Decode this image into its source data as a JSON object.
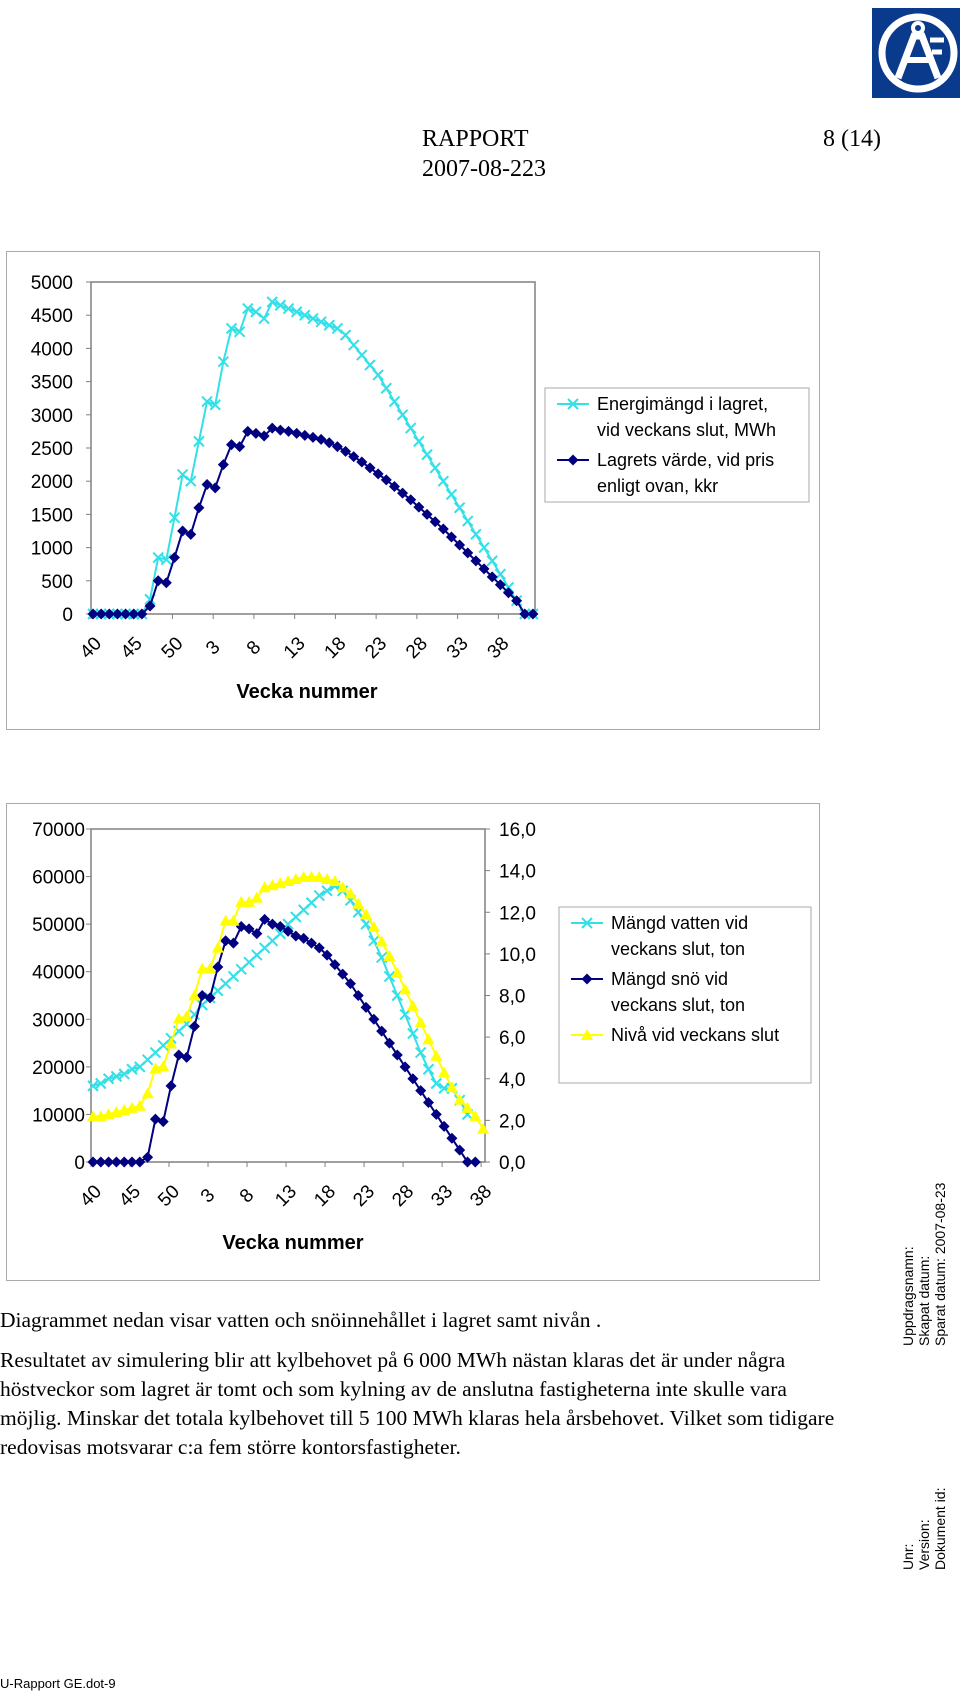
{
  "header": {
    "title": "RAPPORT",
    "page": "8 (14)",
    "date": "2007-08-223"
  },
  "logo": {
    "icon": "af-logo",
    "text": "ÅF",
    "color": "#0a3a8c"
  },
  "charts": [
    {
      "type": "line",
      "xlabel": "Vecka nummer",
      "x_tick_labels": [
        "40",
        "45",
        "50",
        "3",
        "8",
        "13",
        "18",
        "23",
        "28",
        "33",
        "38"
      ],
      "y_ticks": [
        "5000",
        "4500",
        "4000",
        "3500",
        "3000",
        "2500",
        "2000",
        "1500",
        "1000",
        "500",
        "0"
      ],
      "ylim": [
        0,
        5000
      ],
      "legend_placement": "right",
      "series": [
        {
          "name": "Energimängd i lagret, vid veckans slut, MWh",
          "legend_lines": [
            "Energimängd i lagret,",
            "vid veckans slut, MWh"
          ],
          "color": "#33e0e8",
          "marker": "x",
          "values": [
            0,
            0,
            0,
            0,
            0,
            0,
            0,
            220,
            850,
            820,
            1450,
            2100,
            2000,
            2600,
            3200,
            3150,
            3800,
            4300,
            4250,
            4600,
            4550,
            4450,
            4700,
            4650,
            4600,
            4550,
            4500,
            4450,
            4400,
            4350,
            4300,
            4200,
            4050,
            3900,
            3750,
            3600,
            3400,
            3200,
            3000,
            2800,
            2600,
            2400,
            2200,
            2000,
            1800,
            1600,
            1400,
            1200,
            1000,
            800,
            600,
            400,
            200,
            0,
            0
          ]
        },
        {
          "name": "Lagrets värde, vid pris enligt ovan, kkr",
          "legend_lines": [
            "Lagrets värde, vid pris",
            "enligt ovan, kkr"
          ],
          "color": "#000080",
          "marker": "diamond",
          "values": [
            0,
            0,
            0,
            0,
            0,
            0,
            0,
            120,
            500,
            470,
            850,
            1250,
            1200,
            1600,
            1950,
            1900,
            2250,
            2550,
            2520,
            2750,
            2720,
            2680,
            2800,
            2770,
            2750,
            2720,
            2690,
            2660,
            2630,
            2580,
            2520,
            2450,
            2370,
            2290,
            2200,
            2110,
            2020,
            1920,
            1820,
            1720,
            1610,
            1500,
            1390,
            1280,
            1160,
            1040,
            920,
            800,
            680,
            560,
            440,
            320,
            200,
            0,
            0
          ]
        }
      ]
    },
    {
      "type": "line",
      "xlabel": "Vecka nummer",
      "x_tick_labels": [
        "40",
        "45",
        "50",
        "3",
        "8",
        "13",
        "18",
        "23",
        "28",
        "33",
        "38"
      ],
      "y_ticks": [
        "70000",
        "60000",
        "50000",
        "40000",
        "30000",
        "20000",
        "10000",
        "0"
      ],
      "ylim": [
        0,
        70000
      ],
      "y2_ticks": [
        "16,0",
        "14,0",
        "12,0",
        "10,0",
        "8,0",
        "6,0",
        "4,0",
        "2,0",
        "0,0"
      ],
      "y2lim": [
        0,
        16
      ],
      "legend_placement": "right",
      "series": [
        {
          "name": "Mängd vatten vid veckans slut, ton",
          "legend_lines": [
            "Mängd vatten vid",
            "veckans slut, ton"
          ],
          "color": "#33e0e8",
          "marker": "x",
          "axis": "left",
          "values": [
            16000,
            16500,
            17500,
            18000,
            18500,
            19500,
            20000,
            21500,
            23000,
            24500,
            26000,
            27500,
            29000,
            31000,
            33000,
            34500,
            36000,
            37500,
            39000,
            40500,
            42000,
            43500,
            45000,
            46500,
            48000,
            50000,
            51500,
            53000,
            54500,
            56000,
            57000,
            58000,
            57000,
            55000,
            52500,
            50000,
            46500,
            43000,
            39000,
            35000,
            31000,
            27000,
            23000,
            19500,
            16500,
            15500,
            15500,
            13000,
            10000
          ]
        },
        {
          "name": "Mängd snö vid veckans slut, ton",
          "legend_lines": [
            "Mängd snö vid",
            "veckans slut, ton"
          ],
          "color": "#000080",
          "marker": "diamond",
          "axis": "left",
          "values": [
            0,
            0,
            0,
            0,
            0,
            0,
            0,
            1000,
            9000,
            8500,
            16000,
            22500,
            22000,
            28500,
            35000,
            34500,
            41000,
            46500,
            46000,
            49500,
            49000,
            48000,
            51000,
            50000,
            49500,
            48500,
            47500,
            47000,
            46000,
            45000,
            43500,
            41500,
            39500,
            37500,
            35000,
            32500,
            30000,
            27500,
            25000,
            22500,
            20000,
            17500,
            15000,
            12500,
            10000,
            7500,
            5000,
            2500,
            0,
            0
          ]
        },
        {
          "name": "Nivå vid veckans slut",
          "legend_lines": [
            "Nivå vid veckans slut"
          ],
          "color": "#ffff00",
          "marker": "triangle",
          "axis": "right",
          "values": [
            2.2,
            2.2,
            2.3,
            2.4,
            2.5,
            2.6,
            2.7,
            3.3,
            4.5,
            4.6,
            5.7,
            6.9,
            7.0,
            8.0,
            9.3,
            9.3,
            10.3,
            11.6,
            11.6,
            12.5,
            12.5,
            12.7,
            13.2,
            13.3,
            13.4,
            13.5,
            13.6,
            13.7,
            13.7,
            13.7,
            13.6,
            13.5,
            13.2,
            12.9,
            12.4,
            11.9,
            11.3,
            10.6,
            9.9,
            9.1,
            8.3,
            7.5,
            6.7,
            5.9,
            5.1,
            4.3,
            3.6,
            3.0,
            2.6,
            2.2,
            1.6
          ]
        }
      ]
    }
  ],
  "body": {
    "caption": "Diagrammet nedan visar vatten och snöinnehållet i lagret samt nivån .",
    "paragraph": "Resultatet av simulering blir att kylbehovet på 6 000 MWh nästan klaras det är under några höstveckor som lagret är tomt och som kylning av de anslutna fastigheterna inte skulle vara möjlig. Minskar det totala kylbehovet till 5 100 MWh klaras hela årsbehovet. Vilket som tidigare redovisas motsvarar c:a fem större kontorsfastigheter."
  },
  "side_meta": {
    "uppdragsnamn": "Uppdragsnamn:",
    "skapat": "Skapat datum:",
    "sparat": "Sparat datum: 2007-08-23",
    "unr": "Unr:",
    "version": "Version:",
    "dokument": "Dokument id:"
  },
  "footer": {
    "file": "U-Rapport GE.dot-9"
  }
}
